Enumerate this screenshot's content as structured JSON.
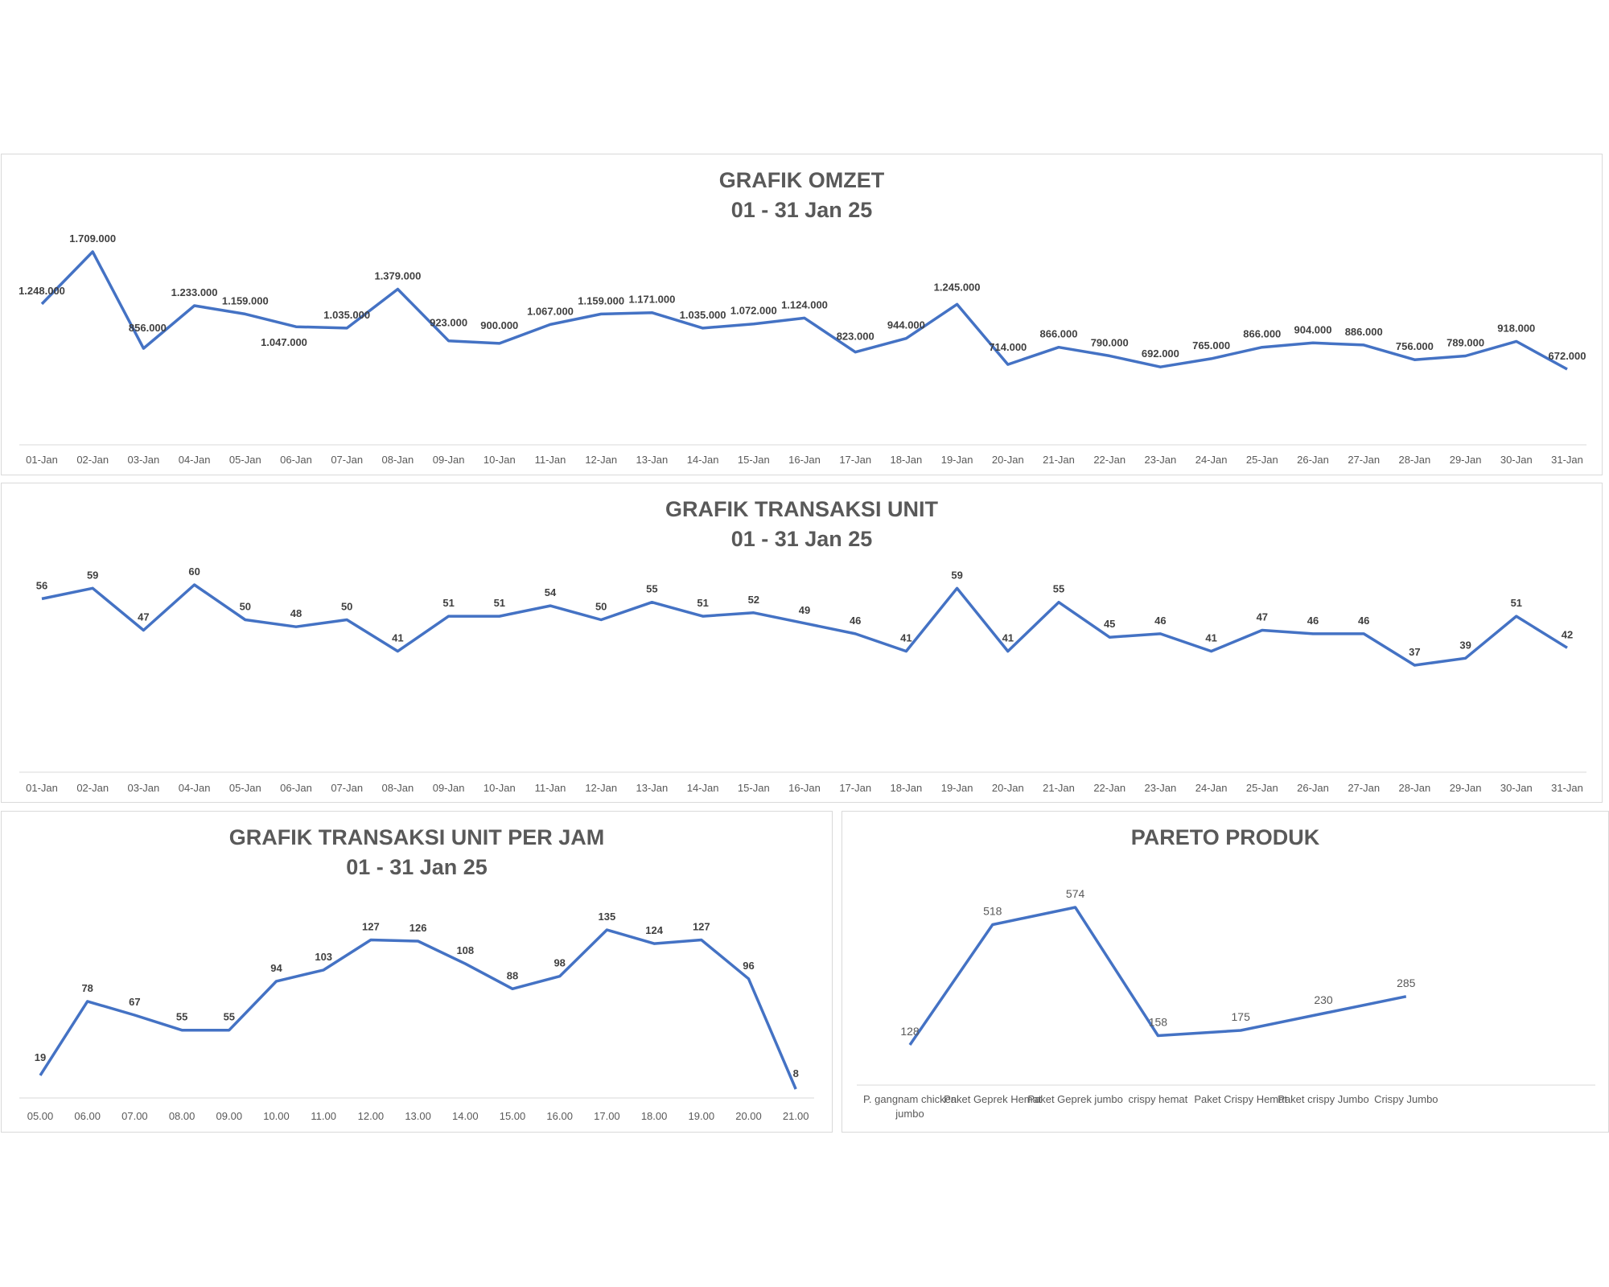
{
  "chart_data": [
    {
      "id": "omzet",
      "type": "line",
      "title": "GRAFIK OMZET",
      "subtitle": "01 - 31 Jan 25",
      "categories": [
        "01-Jan",
        "02-Jan",
        "03-Jan",
        "04-Jan",
        "05-Jan",
        "06-Jan",
        "07-Jan",
        "08-Jan",
        "09-Jan",
        "10-Jan",
        "11-Jan",
        "12-Jan",
        "13-Jan",
        "14-Jan",
        "15-Jan",
        "16-Jan",
        "17-Jan",
        "18-Jan",
        "19-Jan",
        "20-Jan",
        "21-Jan",
        "22-Jan",
        "23-Jan",
        "24-Jan",
        "25-Jan",
        "26-Jan",
        "27-Jan",
        "28-Jan",
        "29-Jan",
        "30-Jan",
        "31-Jan"
      ],
      "values": [
        1248000,
        1709000,
        856000,
        1233000,
        1159000,
        1047000,
        1035000,
        1379000,
        923000,
        900000,
        1067000,
        1159000,
        1171000,
        1035000,
        1072000,
        1124000,
        823000,
        944000,
        1245000,
        714000,
        866000,
        790000,
        692000,
        765000,
        866000,
        904000,
        886000,
        756000,
        789000,
        918000,
        672000
      ],
      "labels": [
        "1.248.000",
        "1.709.000",
        "856.000",
        "1.233.000",
        "1.159.000",
        "1.047.000",
        "1.035.000",
        "1.379.000",
        "923.000",
        "900.000",
        "1.067.000",
        "1.159.000",
        "1.171.000",
        "1.035.000",
        "1.072.000",
        "1.124.000",
        "823.000",
        "944.000",
        "1.245.000",
        "714.000",
        "866.000",
        "790.000",
        "692.000",
        "765.000",
        "866.000",
        "904.000",
        "886.000",
        "756.000",
        "789.000",
        "918.000",
        "672.000"
      ],
      "color": "#4472c4",
      "grid": false,
      "legend": "none"
    },
    {
      "id": "unit",
      "type": "line",
      "title": "GRAFIK TRANSAKSI UNIT",
      "subtitle": "01 - 31 Jan 25",
      "categories": [
        "01-Jan",
        "02-Jan",
        "03-Jan",
        "04-Jan",
        "05-Jan",
        "06-Jan",
        "07-Jan",
        "08-Jan",
        "09-Jan",
        "10-Jan",
        "11-Jan",
        "12-Jan",
        "13-Jan",
        "14-Jan",
        "15-Jan",
        "16-Jan",
        "17-Jan",
        "18-Jan",
        "19-Jan",
        "20-Jan",
        "21-Jan",
        "22-Jan",
        "23-Jan",
        "24-Jan",
        "25-Jan",
        "26-Jan",
        "27-Jan",
        "28-Jan",
        "29-Jan",
        "30-Jan",
        "31-Jan"
      ],
      "values": [
        56,
        59,
        47,
        60,
        50,
        48,
        50,
        41,
        51,
        51,
        54,
        50,
        55,
        51,
        52,
        49,
        46,
        41,
        59,
        41,
        55,
        45,
        46,
        41,
        47,
        46,
        46,
        37,
        39,
        51,
        42
      ],
      "color": "#4472c4",
      "grid": false,
      "legend": "none"
    },
    {
      "id": "jam",
      "type": "line",
      "title": "GRAFIK TRANSAKSI UNIT PER JAM",
      "subtitle": "01 - 31 Jan 25",
      "categories": [
        "05.00",
        "06.00",
        "07.00",
        "08.00",
        "09.00",
        "10.00",
        "11.00",
        "12.00",
        "13.00",
        "14.00",
        "15.00",
        "16.00",
        "17.00",
        "18.00",
        "19.00",
        "20.00",
        "21.00"
      ],
      "values": [
        19,
        78,
        67,
        55,
        55,
        94,
        103,
        127,
        126,
        108,
        88,
        98,
        135,
        124,
        127,
        96,
        8
      ],
      "color": "#4472c4",
      "grid": false,
      "legend": "none"
    },
    {
      "id": "pareto",
      "type": "line",
      "title": "PARETO PRODUK",
      "subtitle": "",
      "categories": [
        [
          "P. gangnam chicken",
          "jumbo"
        ],
        [
          "Paket Geprek Hemat"
        ],
        [
          "Paket Geprek jumbo"
        ],
        [
          "crispy hemat"
        ],
        [
          "Paket Crispy Hemat"
        ],
        [
          "Paket crispy Jumbo"
        ],
        [
          "Crispy Jumbo"
        ]
      ],
      "values": [
        128,
        518,
        574,
        158,
        175,
        230,
        285
      ],
      "color": "#4472c4",
      "grid": false,
      "legend": "none"
    }
  ]
}
